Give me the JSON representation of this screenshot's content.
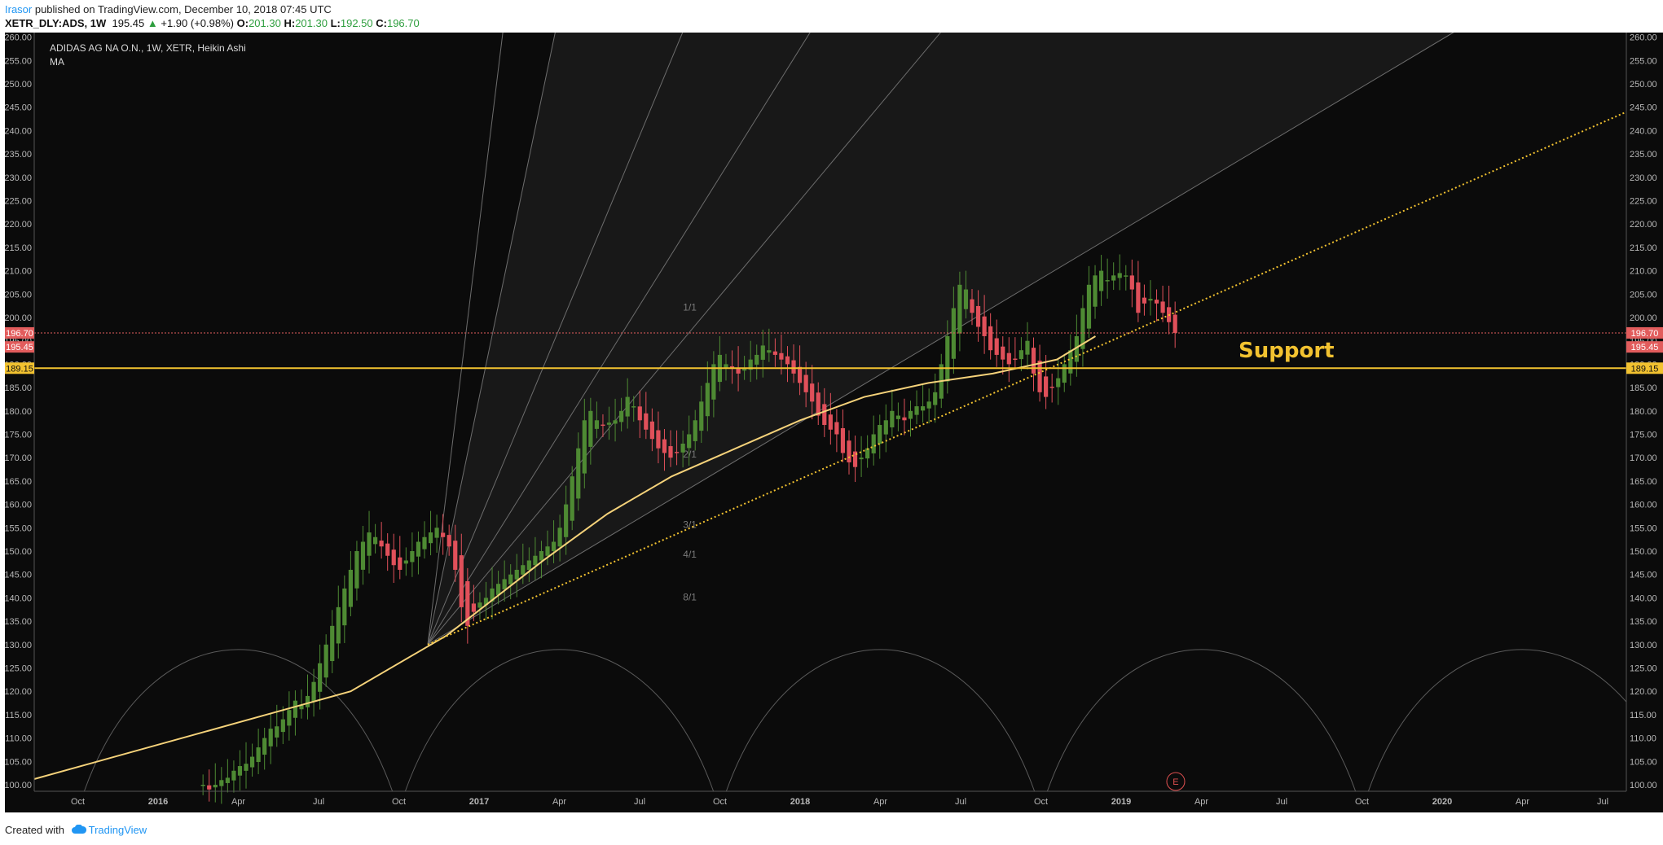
{
  "header": {
    "author": "Irasor",
    "published_text": " published on TradingView.com, December 10, 2018 07:45 UTC",
    "symbol": "XETR_DLY:ADS, 1W",
    "last_price": "195.45",
    "change": "+1.90 (+0.98%)",
    "o_label": "O:",
    "o_value": "201.30",
    "h_label": "H:",
    "h_value": "201.30",
    "l_label": "L:",
    "l_value": "192.50",
    "c_label": "C:",
    "c_value": "196.70"
  },
  "legend": {
    "title": "ADIDAS AG NA O.N., 1W, XETR, Heikin Ashi",
    "indicator": "MA"
  },
  "annotations": {
    "support_label": "Support",
    "fan_labels": [
      "1/1",
      "2/1",
      "3/1",
      "4/1",
      "8/1"
    ],
    "earnings_marker": "E"
  },
  "footer": {
    "created_with": "Created with",
    "brand": "TradingView"
  },
  "colors": {
    "background": "#0b0b0b",
    "up_candle": "#4e8a33",
    "down_candle": "#e0505a",
    "ma_line": "#f5d27a",
    "support_line": "#f2c230",
    "support_text": "#f2c230",
    "price_tag_red": "#e25c5c",
    "axis_text": "#b8b8b8"
  },
  "chart_data": {
    "type": "candlestick",
    "title": "ADIDAS AG NA O.N., 1W, XETR, Heikin Ashi",
    "y_axis": {
      "ylim": [
        98,
        261
      ],
      "ticks": [
        "100.00",
        "105.00",
        "110.00",
        "115.00",
        "120.00",
        "125.00",
        "130.00",
        "135.00",
        "140.00",
        "145.00",
        "150.00",
        "155.00",
        "160.00",
        "165.00",
        "170.00",
        "175.00",
        "180.00",
        "185.00",
        "190.00",
        "195.00",
        "200.00",
        "205.00",
        "210.00",
        "215.00",
        "220.00",
        "225.00",
        "230.00",
        "235.00",
        "240.00",
        "245.00",
        "250.00",
        "255.00",
        "260.00"
      ],
      "price_tags": [
        "196.70",
        "195.45",
        "189.15"
      ]
    },
    "x_axis": {
      "ticks": [
        "Oct",
        "2016",
        "Apr",
        "Jul",
        "Oct",
        "2017",
        "Apr",
        "Jul",
        "Oct",
        "2018",
        "Apr",
        "Jul",
        "Oct",
        "2019",
        "Apr",
        "Jul",
        "Oct",
        "2020",
        "Apr",
        "Jul"
      ]
    },
    "support_level": 189.15,
    "last_price": 195.45,
    "close": 196.7,
    "candles_weekly_close": [
      100,
      99,
      100,
      101,
      101.5,
      103,
      104,
      104.5,
      106,
      108,
      110,
      112,
      112.5,
      114,
      116,
      118,
      117,
      119,
      122,
      126,
      130,
      134,
      138,
      142,
      146,
      150,
      152,
      154,
      153,
      151,
      149,
      147,
      146,
      148,
      150,
      152,
      153,
      154,
      155,
      153,
      151,
      146,
      138,
      134,
      137,
      139,
      140,
      142,
      143,
      144,
      145,
      146,
      147,
      148,
      149,
      150,
      151,
      152,
      155,
      160,
      166,
      172,
      178,
      180,
      178,
      177,
      177.5,
      178,
      180,
      183,
      181,
      178,
      176,
      174,
      172,
      171,
      170,
      171,
      173,
      175,
      178,
      182,
      186,
      190,
      192,
      190,
      189,
      188,
      189,
      191,
      192,
      194,
      193,
      192,
      191,
      190,
      188,
      186,
      184,
      182,
      179,
      177,
      176,
      175,
      171,
      169,
      168,
      170,
      172,
      175,
      177,
      178,
      180,
      179,
      178,
      180,
      181,
      181,
      182,
      184,
      190,
      196,
      202,
      207,
      206,
      201,
      198,
      196,
      193,
      192,
      191,
      190,
      191,
      193,
      195,
      188,
      184,
      183,
      185,
      187,
      190,
      193,
      196,
      202,
      207,
      209,
      210,
      208,
      209,
      209.5,
      209,
      206,
      201,
      203,
      204,
      203,
      201,
      199,
      196.7
    ],
    "ma_points": [
      [
        2015.55,
        100
      ],
      [
        2016.6,
        120
      ],
      [
        2016.9,
        132
      ],
      [
        2017.2,
        148
      ],
      [
        2017.4,
        158
      ],
      [
        2017.6,
        166
      ],
      [
        2017.8,
        172
      ],
      [
        2018.0,
        178
      ],
      [
        2018.2,
        183
      ],
      [
        2018.4,
        186
      ],
      [
        2018.6,
        188
      ],
      [
        2018.8,
        191
      ],
      [
        2018.92,
        196
      ]
    ]
  }
}
